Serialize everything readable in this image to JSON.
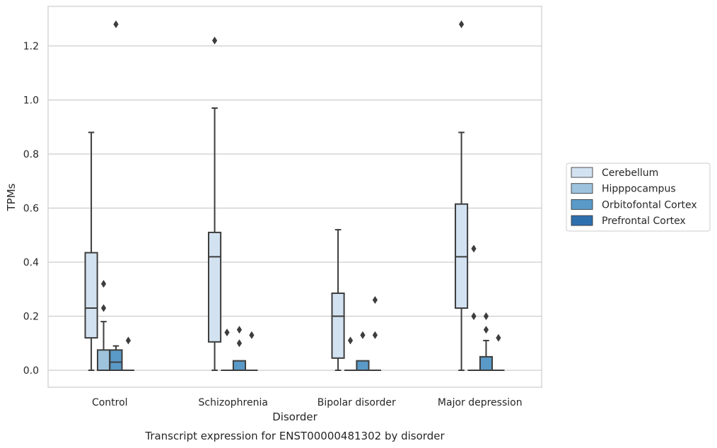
{
  "chart_data": {
    "type": "boxplot",
    "title": "",
    "caption": "Transcript expression for ENST00000481302 by disorder",
    "xlabel": "Disorder",
    "ylabel": "TPMs",
    "ylim": [
      -0.06,
      1.35
    ],
    "yticks": [
      0.0,
      0.2,
      0.4,
      0.6,
      0.8,
      1.0,
      1.2
    ],
    "ytick_labels": [
      "0.0",
      "0.2",
      "0.4",
      "0.6",
      "0.8",
      "1.0",
      "1.2"
    ],
    "grid": "horizontal",
    "legend_position": "outside-right",
    "categories": [
      "Control",
      "Schizophrenia",
      "Bipolar disorder",
      "Major depression"
    ],
    "series": [
      {
        "name": "Cerebellum",
        "color": "#d3e2f1",
        "boxes": [
          {
            "min": 0.0,
            "q1": 0.12,
            "median": 0.23,
            "q3": 0.435,
            "max": 0.88,
            "outliers": []
          },
          {
            "min": 0.0,
            "q1": 0.105,
            "median": 0.42,
            "q3": 0.51,
            "max": 0.97,
            "outliers": [
              1.22
            ]
          },
          {
            "min": 0.0,
            "q1": 0.045,
            "median": 0.2,
            "q3": 0.285,
            "max": 0.52,
            "outliers": []
          },
          {
            "min": 0.0,
            "q1": 0.23,
            "median": 0.42,
            "q3": 0.615,
            "max": 0.88,
            "outliers": [
              1.28
            ]
          }
        ]
      },
      {
        "name": "Hipppocampus",
        "color": "#9dc3dd",
        "boxes": [
          {
            "min": 0.0,
            "q1": 0.0,
            "median": 0.0,
            "q3": 0.075,
            "max": 0.18,
            "outliers": [
              0.23,
              0.32
            ]
          },
          {
            "min": 0.0,
            "q1": 0.0,
            "median": 0.0,
            "q3": 0.0,
            "max": 0.0,
            "outliers": [
              0.14
            ]
          },
          {
            "min": 0.0,
            "q1": 0.0,
            "median": 0.0,
            "q3": 0.0,
            "max": 0.0,
            "outliers": [
              0.11
            ]
          },
          {
            "min": 0.0,
            "q1": 0.0,
            "median": 0.0,
            "q3": 0.0,
            "max": 0.0,
            "outliers": [
              0.2,
              0.45
            ]
          }
        ]
      },
      {
        "name": "Orbitofontal Cortex",
        "color": "#5a9ac8",
        "boxes": [
          {
            "min": 0.0,
            "q1": 0.0,
            "median": 0.03,
            "q3": 0.075,
            "max": 0.09,
            "outliers": [
              1.28
            ]
          },
          {
            "min": 0.0,
            "q1": 0.0,
            "median": 0.0,
            "q3": 0.035,
            "max": 0.035,
            "outliers": [
              0.1,
              0.15
            ]
          },
          {
            "min": 0.0,
            "q1": 0.0,
            "median": 0.0,
            "q3": 0.035,
            "max": 0.035,
            "outliers": [
              0.13
            ]
          },
          {
            "min": 0.0,
            "q1": 0.0,
            "median": 0.0,
            "q3": 0.05,
            "max": 0.11,
            "outliers": [
              0.15,
              0.2
            ]
          }
        ]
      },
      {
        "name": "Prefrontal Cortex",
        "color": "#2e6fae",
        "boxes": [
          {
            "min": 0.0,
            "q1": 0.0,
            "median": 0.0,
            "q3": 0.0,
            "max": 0.0,
            "outliers": [
              0.11
            ]
          },
          {
            "min": 0.0,
            "q1": 0.0,
            "median": 0.0,
            "q3": 0.0,
            "max": 0.0,
            "outliers": [
              0.13
            ]
          },
          {
            "min": 0.0,
            "q1": 0.0,
            "median": 0.0,
            "q3": 0.0,
            "max": 0.0,
            "outliers": [
              0.13,
              0.26
            ]
          },
          {
            "min": 0.0,
            "q1": 0.0,
            "median": 0.0,
            "q3": 0.0,
            "max": 0.0,
            "outliers": [
              0.12
            ]
          }
        ]
      }
    ]
  }
}
